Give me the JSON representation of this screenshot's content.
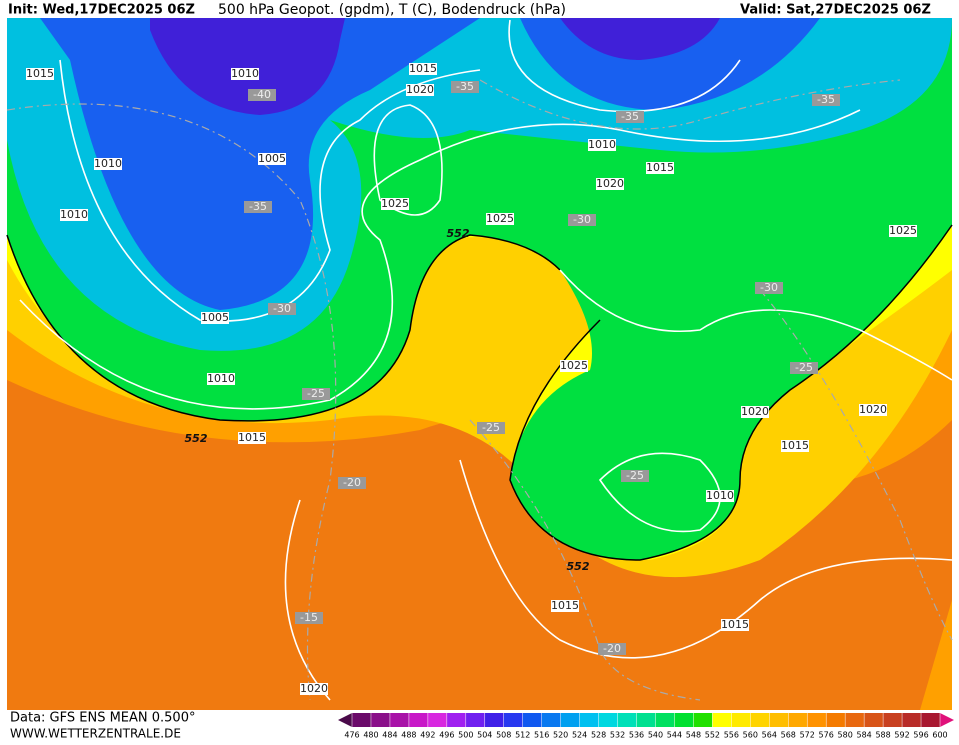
{
  "header": {
    "init": "Init: Wed,17DEC2025 06Z",
    "title": "500 hPa Geopot. (gpdm), T (C), Bodendruck (hPa)",
    "valid": "Valid: Sat,27DEC2025 06Z"
  },
  "isobar_labels": [
    "1015",
    "1010",
    "1015",
    "1020",
    "1010",
    "1005",
    "1010",
    "1025",
    "1025",
    "1010",
    "1015",
    "1020",
    "1025",
    "1005",
    "1010",
    "1015",
    "1025",
    "1020",
    "1020",
    "1015",
    "1010",
    "1015",
    "1015",
    "1020"
  ],
  "temperature_labels": [
    "-40",
    "-35",
    "-35",
    "-35",
    "-35",
    "-30",
    "-30",
    "-30",
    "-25",
    "-25",
    "-25",
    "-25",
    "-20",
    "-20",
    "-15"
  ],
  "geopotential_labels": [
    "552",
    "552",
    "552"
  ],
  "colorbar": {
    "ticks": [
      476,
      480,
      484,
      488,
      492,
      496,
      500,
      504,
      508,
      512,
      516,
      520,
      524,
      528,
      532,
      536,
      540,
      544,
      548,
      552,
      556,
      560,
      564,
      568,
      572,
      576,
      580,
      584,
      588,
      592,
      596,
      600
    ],
    "colors": [
      "#4a0a4a",
      "#6a0a6a",
      "#8a108a",
      "#a812a8",
      "#c818c8",
      "#d828e0",
      "#a020f0",
      "#7020f0",
      "#4020e8",
      "#2838f0",
      "#1058f0",
      "#0878f0",
      "#00a0f0",
      "#00c0f0",
      "#00d8e0",
      "#00e0b8",
      "#00e090",
      "#00e060",
      "#00e030",
      "#20e000",
      "#ffff00",
      "#ffea00",
      "#ffd400",
      "#ffbe00",
      "#ffa800",
      "#ff9200",
      "#f47a00",
      "#e86810",
      "#d85418",
      "#c84020",
      "#b82c28",
      "#a81830",
      "#e0107a"
    ]
  },
  "footer": {
    "data": "Data: GFS ENS MEAN 0.500°",
    "site": "WWW.WETTERZENTRALE.DE"
  }
}
